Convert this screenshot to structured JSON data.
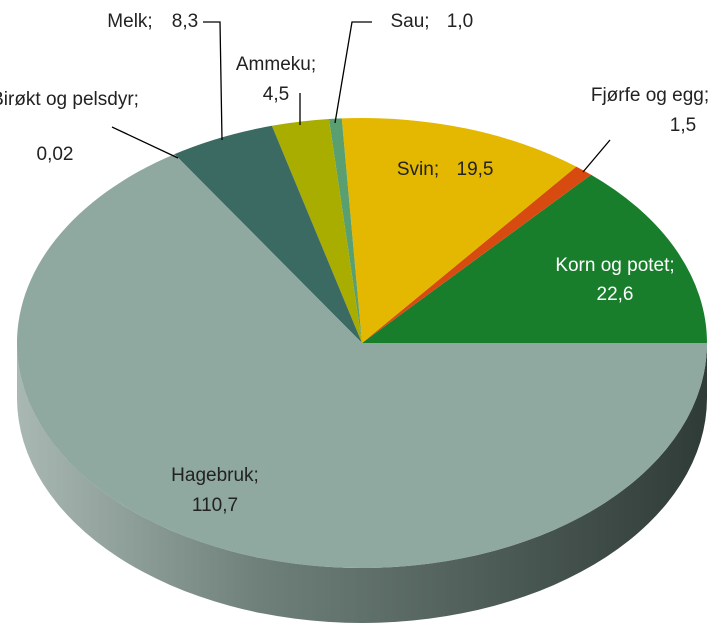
{
  "chart_data": {
    "type": "pie",
    "categories": [
      "Korn og potet;",
      "Fjørfe og egg;",
      "Svin;",
      "Sau;",
      "Ammeku;",
      "Melk;",
      "Birøkt og pelsdyr;",
      "Hagebruk;"
    ],
    "values": [
      22.6,
      1.5,
      19.5,
      1.0,
      4.5,
      8.3,
      0.02,
      110.7
    ],
    "value_labels": [
      "22,6",
      "1,5",
      "19,5",
      "1,0",
      "4,5",
      "8,3",
      "0,02",
      "110,7"
    ],
    "colors": [
      "#197e2c",
      "#d84b10",
      "#e4b800",
      "#5a9f70",
      "#a8ad00",
      "#3b6a63",
      "#3b6a63",
      "#8fa8a0"
    ]
  }
}
